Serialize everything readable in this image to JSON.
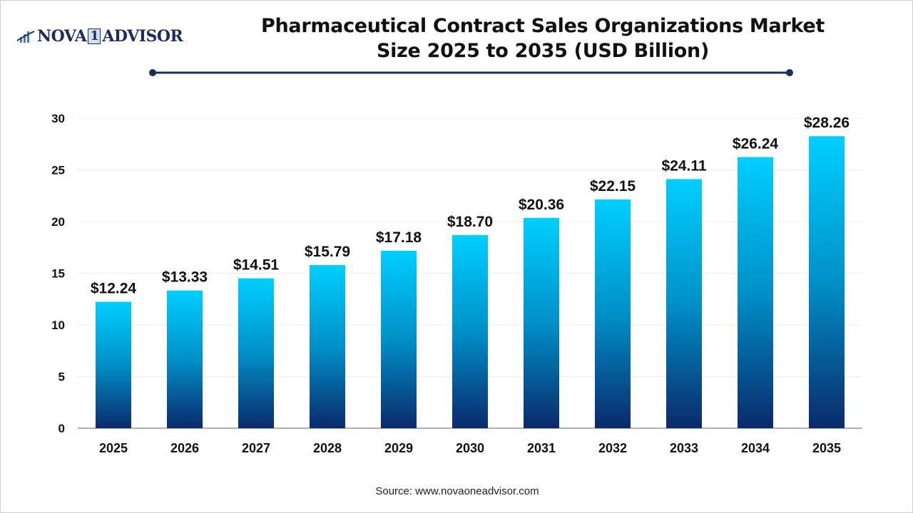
{
  "logo": {
    "text_left": "NOVA",
    "text_mid": "1",
    "text_right": "ADVISOR"
  },
  "title_line1": "Pharmaceutical Contract Sales Organizations Market",
  "title_line2": "Size 2025 to 2035 (USD Billion)",
  "source": "Source: www.novaoneadvisor.com",
  "colors": {
    "bar_top": "#00cfff",
    "bar_bottom": "#0a2a6b",
    "title_rule": "#1d2c5e"
  },
  "chart_data": {
    "type": "bar",
    "title": "Pharmaceutical Contract Sales Organizations Market Size 2025 to 2035 (USD Billion)",
    "categories": [
      "2025",
      "2026",
      "2027",
      "2028",
      "2029",
      "2030",
      "2031",
      "2032",
      "2033",
      "2034",
      "2035"
    ],
    "values": [
      12.24,
      13.33,
      14.51,
      15.79,
      17.18,
      18.7,
      20.36,
      22.15,
      24.11,
      26.24,
      28.26
    ],
    "data_labels": [
      "$12.24",
      "$13.33",
      "$14.51",
      "$15.79",
      "$17.18",
      "$18.70",
      "$20.36",
      "$22.15",
      "$24.11",
      "$26.24",
      "$28.26"
    ],
    "yticks": [
      0,
      5,
      10,
      15,
      20,
      25,
      30
    ],
    "ylim": [
      0,
      30
    ],
    "xlabel": "",
    "ylabel": "",
    "grid": true,
    "legend": "none"
  }
}
